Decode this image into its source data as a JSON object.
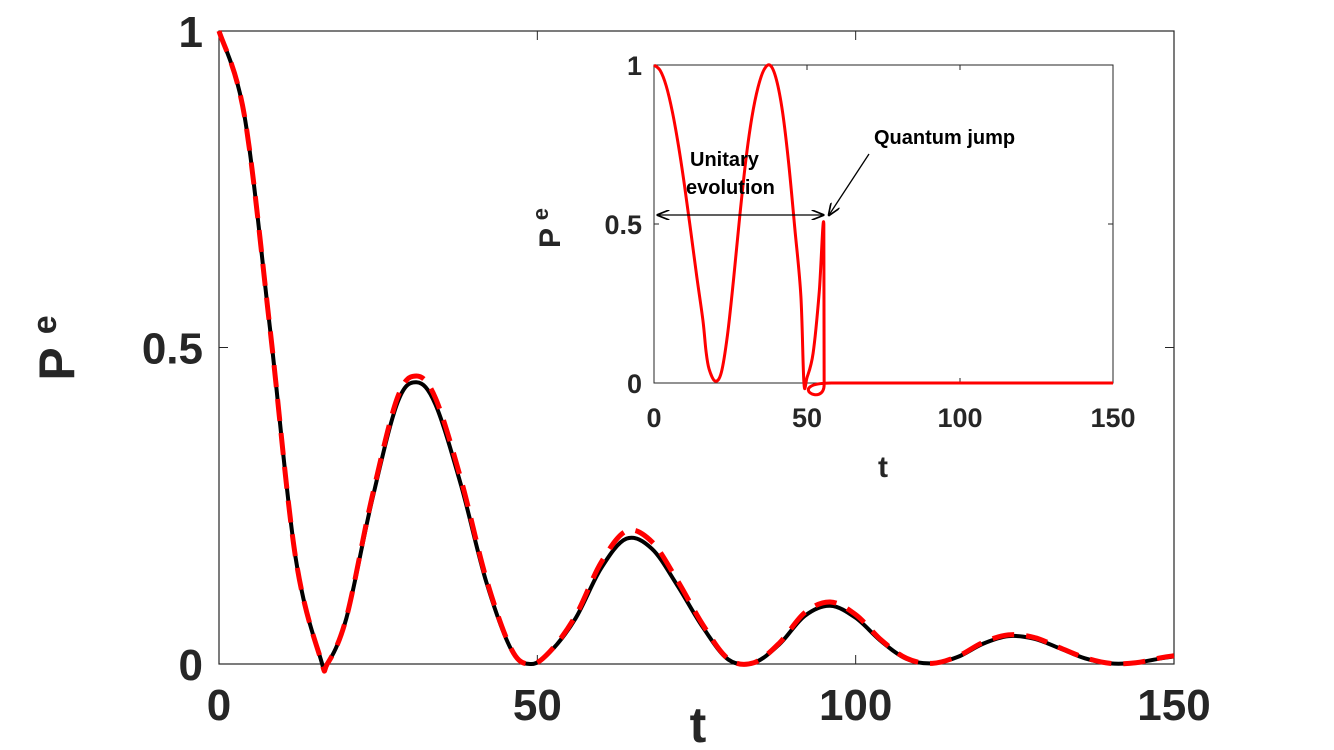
{
  "chart_data": [
    {
      "type": "line",
      "xlabel": "t",
      "ylabel_main": "P",
      "ylabel_sub": "e",
      "xlim": [
        0,
        150
      ],
      "ylim": [
        0,
        1
      ],
      "xticks": [
        "0",
        "50",
        "100",
        "150"
      ],
      "yticks": [
        "0",
        "0.5",
        "1"
      ],
      "grid": false,
      "series": [
        {
          "style": "solid",
          "color": "#000000",
          "x": [
            0,
            4,
            8,
            12,
            16,
            17,
            20,
            24,
            28,
            31,
            34,
            38,
            42,
            46,
            49,
            52,
            56,
            60,
            64,
            68,
            72,
            76,
            80,
            84,
            88,
            92,
            96,
            100,
            104,
            108,
            112,
            116,
            120,
            124,
            128,
            132,
            136,
            140,
            144,
            148,
            150
          ],
          "values": [
            1.0,
            0.866,
            0.531,
            0.17,
            0.007,
            0.0,
            0.072,
            0.257,
            0.412,
            0.445,
            0.41,
            0.283,
            0.129,
            0.021,
            0.0,
            0.019,
            0.072,
            0.151,
            0.198,
            0.182,
            0.124,
            0.058,
            0.007,
            0.002,
            0.031,
            0.076,
            0.092,
            0.073,
            0.036,
            0.008,
            0.001,
            0.011,
            0.032,
            0.044,
            0.04,
            0.025,
            0.009,
            0.001,
            0.002,
            0.009,
            0.012
          ]
        },
        {
          "style": "dashed",
          "color": "#ff0000",
          "x": [
            0,
            4,
            8,
            12,
            16,
            17,
            20,
            24,
            28,
            31,
            34,
            38,
            42,
            46,
            49,
            52,
            56,
            60,
            64,
            68,
            72,
            76,
            80,
            84,
            88,
            92,
            96,
            100,
            104,
            108,
            112,
            116,
            120,
            124,
            128,
            132,
            136,
            140,
            144,
            148,
            150
          ],
          "values": [
            1.0,
            0.866,
            0.531,
            0.17,
            0.007,
            0.0,
            0.073,
            0.262,
            0.42,
            0.455,
            0.42,
            0.292,
            0.134,
            0.022,
            0.0,
            0.02,
            0.076,
            0.16,
            0.21,
            0.193,
            0.132,
            0.062,
            0.008,
            0.002,
            0.033,
            0.081,
            0.098,
            0.078,
            0.038,
            0.009,
            0.001,
            0.012,
            0.034,
            0.046,
            0.042,
            0.026,
            0.01,
            0.001,
            0.002,
            0.01,
            0.013
          ]
        }
      ]
    },
    {
      "type": "line",
      "xlabel": "t",
      "ylabel_main": "P",
      "ylabel_sub": "e",
      "xlim": [
        0,
        150
      ],
      "ylim": [
        0,
        1
      ],
      "xticks": [
        "0",
        "50",
        "100",
        "150"
      ],
      "yticks": [
        "0",
        "0.5",
        "1"
      ],
      "grid": false,
      "series": [
        {
          "style": "solid",
          "color": "#ff0000",
          "x": [
            0,
            2,
            4,
            6,
            8,
            10,
            12,
            14,
            16,
            17,
            18,
            20,
            22,
            24,
            26,
            28,
            30,
            32,
            34,
            36,
            38,
            40,
            42,
            44,
            46,
            48,
            49,
            50,
            52,
            54,
            55.5,
            55.6,
            58,
            150
          ],
          "values": [
            1.0,
            0.983,
            0.934,
            0.853,
            0.746,
            0.619,
            0.478,
            0.333,
            0.196,
            0.1,
            0.044,
            0.006,
            0.033,
            0.15,
            0.326,
            0.522,
            0.7,
            0.836,
            0.93,
            0.986,
            0.999,
            0.954,
            0.853,
            0.692,
            0.488,
            0.273,
            0.0,
            0.017,
            0.094,
            0.286,
            0.5,
            0.0,
            0.0,
            0.0
          ]
        }
      ],
      "annotations": {
        "unitary_line1": "Unitary",
        "unitary_line2": "evolution",
        "jump": "Quantum jump"
      }
    }
  ]
}
